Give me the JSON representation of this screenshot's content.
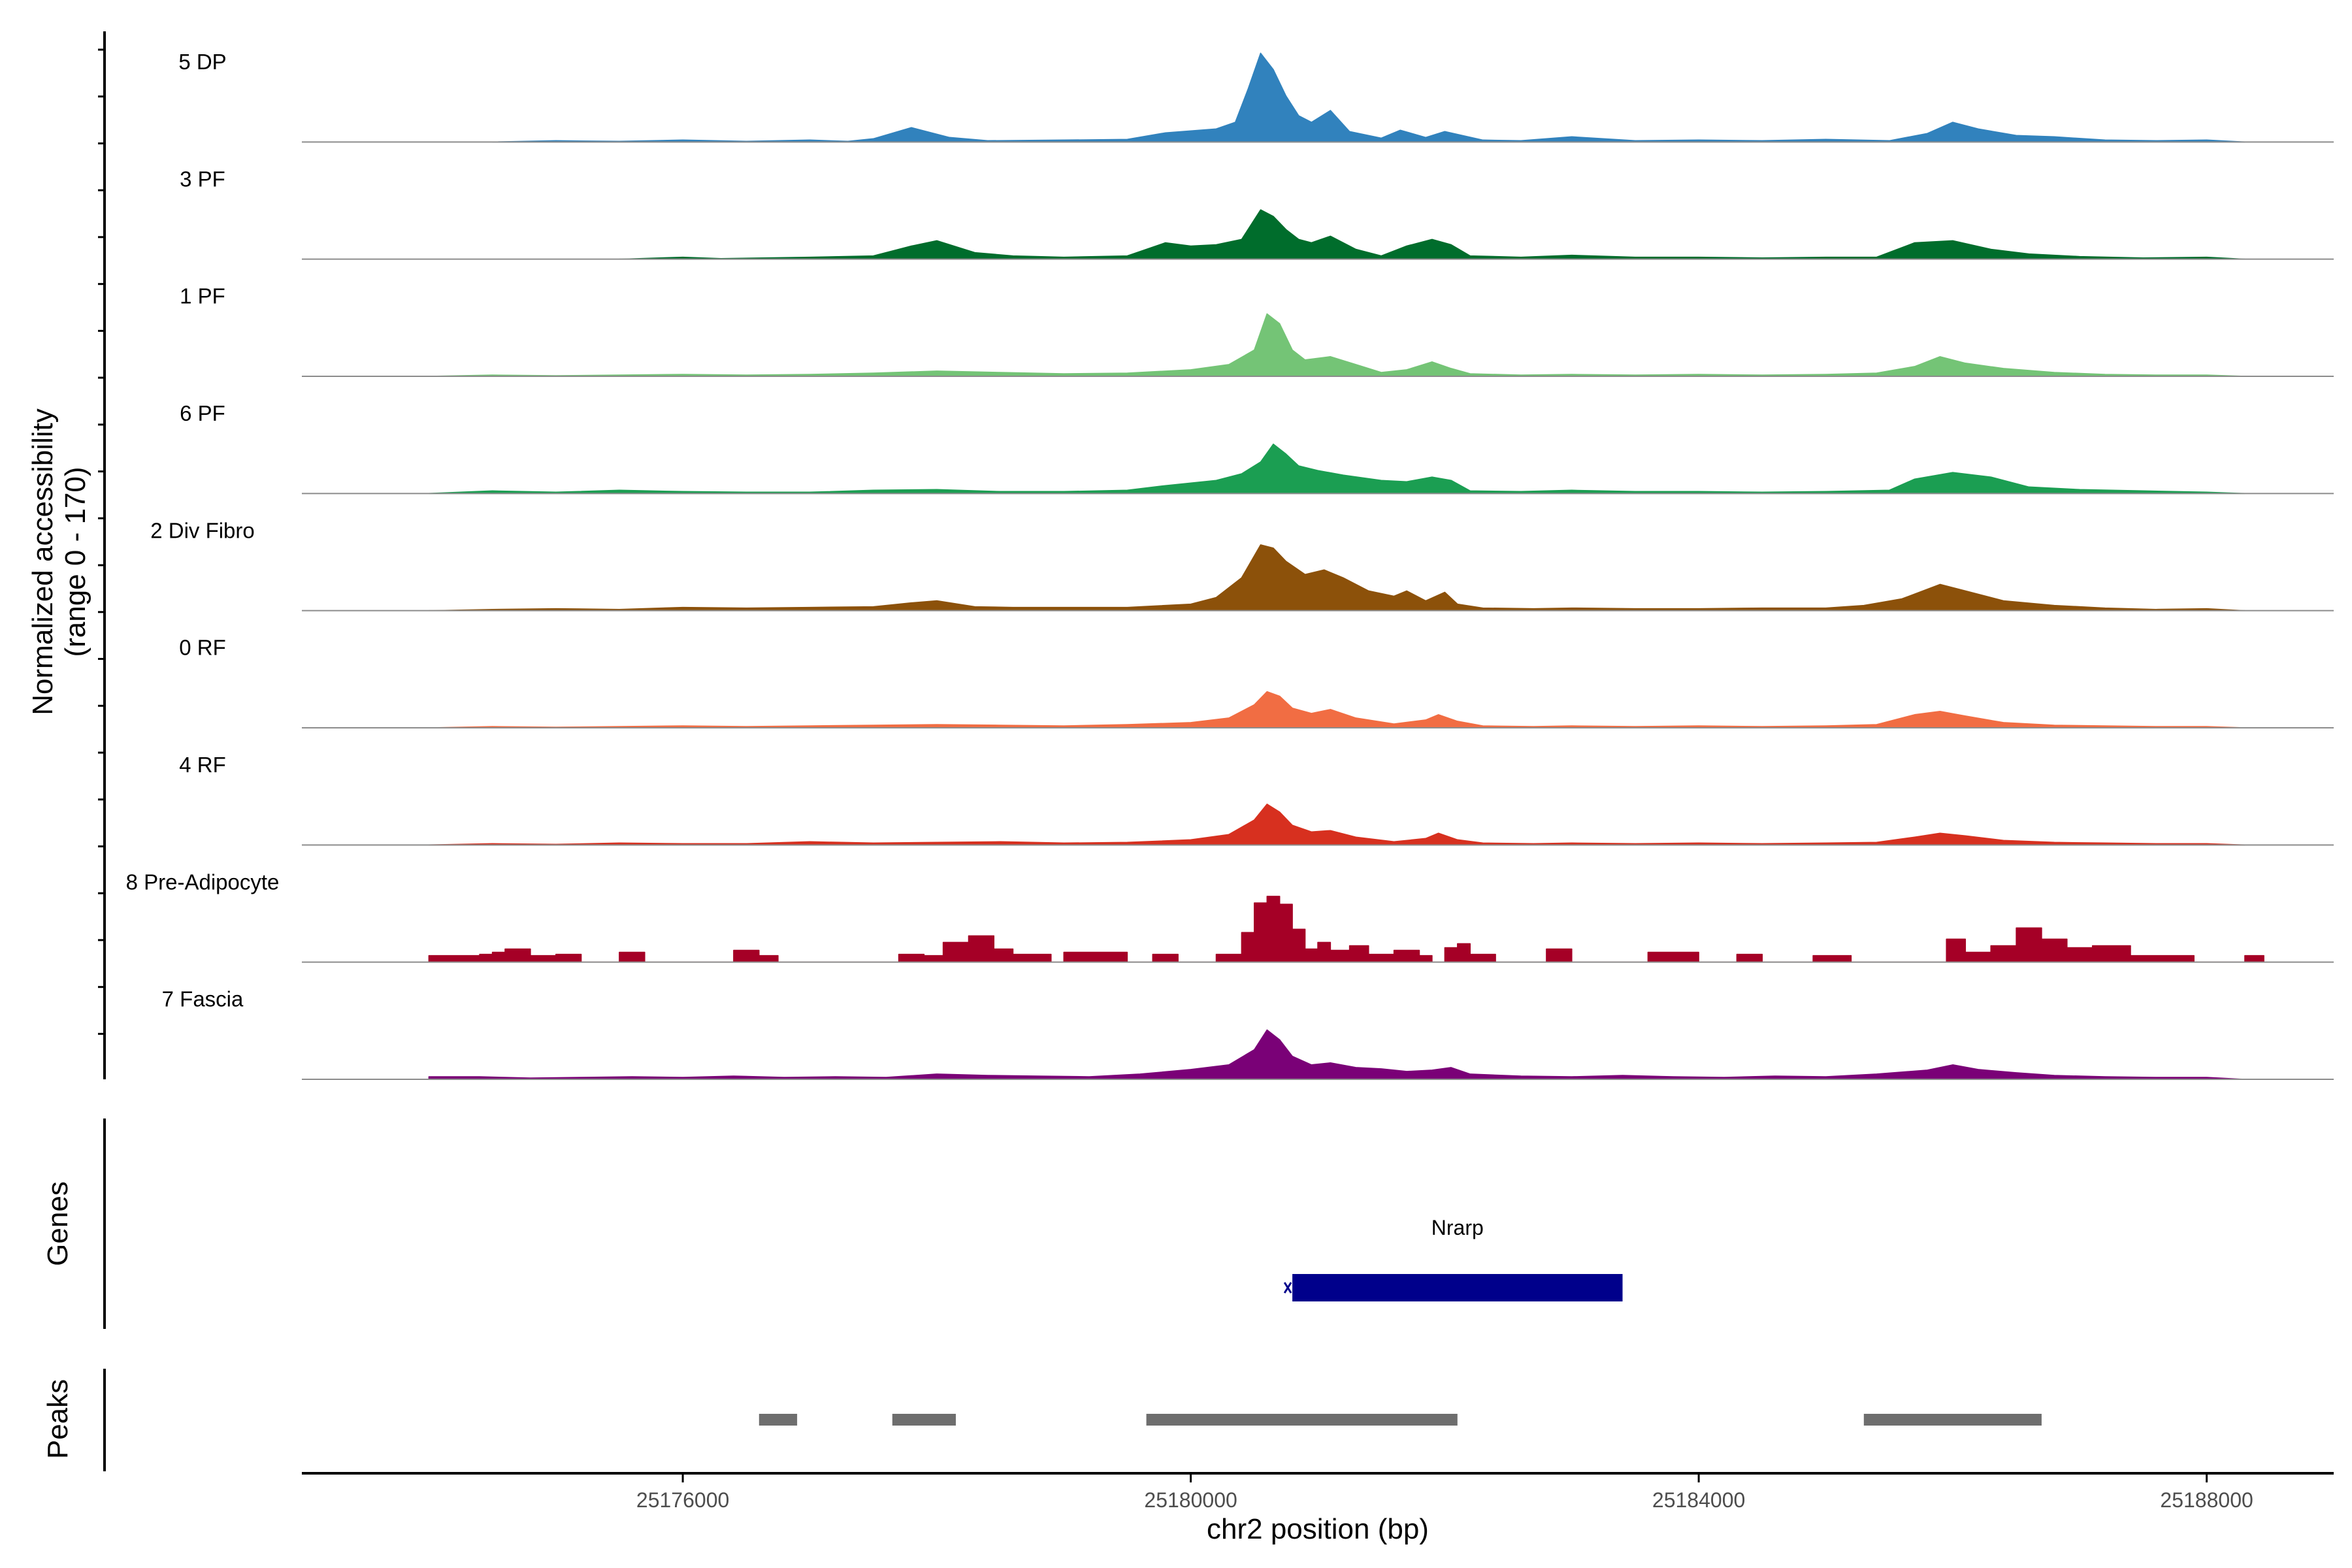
{
  "chart_data": {
    "type": "area",
    "title": "",
    "xlabel": "chr2 position (bp)",
    "ylabel": "Normalized accessibility",
    "ylabel_sub": "(range 0 - 170)",
    "y_range": [
      0,
      170
    ],
    "x_range": [
      25173000,
      25189000
    ],
    "x_ticks": [
      {
        "value": 25176000,
        "label": "25176000"
      },
      {
        "value": 25180000,
        "label": "25180000"
      },
      {
        "value": 25184000,
        "label": "25184000"
      },
      {
        "value": 25188000,
        "label": "25188000"
      }
    ],
    "series": [
      {
        "name": "5 DP",
        "color": "#3182bd",
        "style": "smooth",
        "x": [
          25174500,
          25175000,
          25175500,
          25176000,
          25176500,
          25177000,
          25177300,
          25177500,
          25177800,
          25178100,
          25178400,
          25179000,
          25179500,
          25179800,
          25180000,
          25180200,
          25180350,
          25180450,
          25180550,
          25180650,
          25180750,
          25180850,
          25180950,
          25181100,
          25181250,
          25181500,
          25181650,
          25181850,
          25182000,
          25182300,
          25182600,
          25183000,
          25183500,
          25184000,
          25184500,
          25185000,
          25185500,
          25185800,
          25186000,
          25186200,
          25186500,
          25186800,
          25187200,
          25187600,
          25188000,
          25188300
        ],
        "y": [
          0,
          2,
          1,
          3,
          1,
          3,
          1,
          5,
          22,
          7,
          2,
          3,
          4,
          14,
          17,
          20,
          30,
          80,
          135,
          110,
          70,
          40,
          30,
          48,
          16,
          6,
          18,
          7,
          16,
          3,
          2,
          8,
          2,
          3,
          2,
          4,
          2,
          13,
          30,
          20,
          10,
          8,
          3,
          2,
          3,
          0
        ]
      },
      {
        "name": "3 PF",
        "color": "#006d2c",
        "style": "smooth",
        "x": [
          25175500,
          25176000,
          25176300,
          25177000,
          25177500,
          25177800,
          25178000,
          25178300,
          25178600,
          25179000,
          25179500,
          25179800,
          25180000,
          25180200,
          25180400,
          25180550,
          25180650,
          25180750,
          25180850,
          25180950,
          25181100,
          25181300,
          25181500,
          25181700,
          25181900,
          25182050,
          25182200,
          25182600,
          25183000,
          25183500,
          25184000,
          25184500,
          25185000,
          25185400,
          25185700,
          25186000,
          25186300,
          25186600,
          25187000,
          25187500,
          25188000,
          25188300
        ],
        "y": [
          0,
          3,
          1,
          3,
          5,
          20,
          28,
          10,
          5,
          3,
          5,
          25,
          20,
          22,
          30,
          75,
          65,
          45,
          30,
          25,
          35,
          15,
          5,
          20,
          30,
          22,
          5,
          3,
          6,
          3,
          3,
          2,
          3,
          3,
          25,
          28,
          15,
          8,
          4,
          2,
          3,
          0
        ]
      },
      {
        "name": "1 PF",
        "color": "#74c476",
        "style": "smooth",
        "x": [
          25174000,
          25174500,
          25175000,
          25175500,
          25176000,
          25176500,
          25177000,
          25177500,
          25178000,
          25178500,
          25179000,
          25179500,
          25180000,
          25180300,
          25180500,
          25180600,
          25180700,
          25180800,
          25180900,
          25181100,
          25181300,
          25181500,
          25181700,
          25181900,
          25182050,
          25182200,
          25182600,
          25183000,
          25183500,
          25184000,
          25184500,
          25185000,
          25185400,
          25185700,
          25185900,
          25186100,
          25186400,
          25186800,
          25187200,
          25187600,
          25188000,
          25188300
        ],
        "y": [
          0,
          2,
          1,
          2,
          3,
          2,
          3,
          5,
          8,
          6,
          4,
          5,
          10,
          18,
          40,
          95,
          80,
          40,
          25,
          30,
          18,
          6,
          10,
          22,
          12,
          4,
          2,
          3,
          2,
          3,
          2,
          3,
          5,
          15,
          30,
          20,
          12,
          6,
          3,
          2,
          2,
          0
        ]
      },
      {
        "name": "6 PF",
        "color": "#1b9e52",
        "style": "smooth",
        "x": [
          25174000,
          25174500,
          25175000,
          25175500,
          25176000,
          25176500,
          25177000,
          25177500,
          25178000,
          25178500,
          25179000,
          25179500,
          25179800,
          25180000,
          25180200,
          25180400,
          25180550,
          25180650,
          25180750,
          25180850,
          25181000,
          25181200,
          25181500,
          25181700,
          25181900,
          25182050,
          25182200,
          25182600,
          25183000,
          25183500,
          25184000,
          25184500,
          25185000,
          25185500,
          25185700,
          25186000,
          25186300,
          25186600,
          25187000,
          25187500,
          25188000,
          25188300
        ],
        "y": [
          0,
          4,
          2,
          5,
          3,
          2,
          2,
          5,
          6,
          3,
          3,
          5,
          12,
          16,
          20,
          30,
          48,
          75,
          60,
          42,
          35,
          28,
          20,
          18,
          25,
          20,
          4,
          3,
          5,
          3,
          3,
          2,
          3,
          5,
          22,
          32,
          25,
          10,
          6,
          4,
          2,
          0
        ]
      },
      {
        "name": "2 Div Fibro",
        "color": "#8c510a",
        "style": "smooth",
        "x": [
          25174000,
          25174500,
          25175000,
          25175500,
          25176000,
          25176500,
          25177000,
          25177500,
          25177800,
          25178000,
          25178300,
          25178600,
          25179000,
          25179500,
          25180000,
          25180200,
          25180400,
          25180550,
          25180650,
          25180750,
          25180900,
          25181050,
          25181200,
          25181400,
          25181600,
          25181700,
          25181850,
          25182000,
          25182100,
          25182300,
          25182700,
          25183000,
          25183500,
          25184000,
          25184500,
          25185000,
          25185300,
          25185600,
          25185900,
          25186100,
          25186400,
          25186800,
          25187200,
          25187600,
          25188000,
          25188300
        ],
        "y": [
          0,
          2,
          3,
          2,
          5,
          4,
          5,
          6,
          12,
          15,
          6,
          5,
          5,
          5,
          10,
          20,
          50,
          100,
          95,
          75,
          55,
          62,
          50,
          30,
          22,
          30,
          15,
          28,
          10,
          4,
          3,
          4,
          3,
          3,
          4,
          4,
          8,
          18,
          40,
          30,
          15,
          8,
          4,
          2,
          3,
          0
        ]
      },
      {
        "name": "0 RF",
        "color": "#f16d43",
        "style": "smooth",
        "x": [
          25174000,
          25174500,
          25175000,
          25175500,
          25176000,
          25176500,
          25177000,
          25177500,
          25178000,
          25178500,
          25179000,
          25179500,
          25180000,
          25180300,
          25180500,
          25180600,
          25180700,
          25180800,
          25180950,
          25181100,
          25181300,
          25181600,
          25181850,
          25181950,
          25182100,
          25182300,
          25182700,
          25183000,
          25183500,
          25184000,
          25184500,
          25185000,
          25185400,
          25185700,
          25185900,
          25186100,
          25186400,
          25186800,
          25187200,
          25187600,
          25188000,
          25188300
        ],
        "y": [
          0,
          2,
          1,
          2,
          3,
          2,
          3,
          4,
          5,
          4,
          3,
          5,
          8,
          15,
          35,
          55,
          48,
          30,
          22,
          28,
          15,
          6,
          12,
          20,
          10,
          3,
          2,
          3,
          2,
          3,
          2,
          3,
          5,
          20,
          25,
          18,
          8,
          4,
          3,
          2,
          2,
          0
        ]
      },
      {
        "name": "4 RF",
        "color": "#d7301f",
        "style": "smooth",
        "x": [
          25174000,
          25174500,
          25175000,
          25175500,
          25176000,
          25176500,
          25177000,
          25177500,
          25178000,
          25178500,
          25179000,
          25179500,
          25180000,
          25180300,
          25180500,
          25180600,
          25180700,
          25180800,
          25180950,
          25181100,
          25181300,
          25181600,
          25181850,
          25181950,
          25182100,
          25182300,
          25182700,
          25183000,
          25183500,
          25184000,
          25184500,
          25185000,
          25185400,
          25185700,
          25185900,
          25186100,
          25186400,
          25186800,
          25187200,
          25187600,
          25188000,
          25188300
        ],
        "y": [
          0,
          2,
          1,
          3,
          2,
          2,
          5,
          3,
          4,
          5,
          3,
          4,
          8,
          16,
          38,
          62,
          50,
          30,
          20,
          22,
          12,
          5,
          10,
          18,
          8,
          3,
          2,
          3,
          2,
          3,
          2,
          3,
          4,
          12,
          18,
          14,
          7,
          4,
          3,
          2,
          2,
          0
        ]
      },
      {
        "name": "8 Pre-Adipocyte",
        "color": "#a50026",
        "style": "step",
        "x": [
          25174000,
          25174400,
          25174500,
          25174600,
          25174800,
          25175000,
          25175200,
          25175500,
          25175700,
          25176000,
          25176400,
          25176600,
          25176750,
          25177300,
          25177500,
          25177700,
          25177900,
          25178050,
          25178250,
          25178450,
          25178600,
          25178900,
          25179000,
          25179500,
          25179700,
          25179900,
          25180000,
          25180200,
          25180400,
          25180500,
          25180600,
          25180700,
          25180800,
          25180900,
          25181000,
          25181100,
          25181250,
          25181400,
          25181600,
          25181800,
          25181900,
          25182000,
          25182100,
          25182200,
          25182400,
          25182600,
          25182800,
          25183000,
          25183300,
          25183600,
          25184000,
          25184300,
          25184500,
          25184700,
          25184900,
          25185200,
          25185600,
          25185800,
          25185950,
          25186100,
          25186300,
          25186500,
          25186700,
          25186900,
          25187100,
          25187400,
          25187900,
          25188000,
          25188300
        ],
        "y": [
          10,
          12,
          15,
          20,
          10,
          12,
          0,
          15,
          0,
          0,
          18,
          10,
          0,
          0,
          0,
          12,
          10,
          30,
          40,
          20,
          12,
          0,
          15,
          0,
          12,
          0,
          0,
          12,
          45,
          90,
          100,
          88,
          50,
          20,
          30,
          18,
          25,
          12,
          18,
          10,
          0,
          22,
          28,
          12,
          0,
          0,
          20,
          0,
          0,
          15,
          0,
          12,
          0,
          0,
          10,
          0,
          0,
          0,
          35,
          15,
          25,
          52,
          35,
          22,
          25,
          10,
          0,
          0,
          10
        ]
      },
      {
        "name": "7 Fascia",
        "color": "#7a0177",
        "style": "smooth",
        "x": [
          25174000,
          25174400,
          25174800,
          25175200,
          25175600,
          25176000,
          25176400,
          25176800,
          25177200,
          25177600,
          25178000,
          25178400,
          25178800,
          25179200,
          25179600,
          25180000,
          25180300,
          25180500,
          25180600,
          25180700,
          25180800,
          25180950,
          25181100,
          25181300,
          25181500,
          25181700,
          25181900,
          25182050,
          25182200,
          25182600,
          25183000,
          25183400,
          25183800,
          25184200,
          25184600,
          25185000,
          25185400,
          25185800,
          25186000,
          25186200,
          25186500,
          25186800,
          25187200,
          25187600,
          25188000,
          25188300
        ],
        "y": [
          4,
          4,
          2,
          3,
          4,
          3,
          5,
          3,
          4,
          3,
          8,
          6,
          5,
          4,
          8,
          15,
          22,
          45,
          75,
          60,
          35,
          22,
          25,
          18,
          16,
          12,
          14,
          18,
          8,
          5,
          4,
          6,
          4,
          3,
          5,
          4,
          8,
          14,
          22,
          15,
          10,
          6,
          4,
          3,
          3,
          0
        ]
      }
    ],
    "genes": [
      {
        "name": "Nrarp",
        "start": 25180800,
        "end": 25183400,
        "strand": "-",
        "color": "#00008b"
      }
    ],
    "peaks": [
      {
        "start": 25176600,
        "end": 25176900
      },
      {
        "start": 25177650,
        "end": 25178150
      },
      {
        "start": 25179650,
        "end": 25182100
      },
      {
        "start": 25185300,
        "end": 25186700
      }
    ],
    "panels": {
      "genes": "Genes",
      "peaks": "Peaks"
    }
  }
}
